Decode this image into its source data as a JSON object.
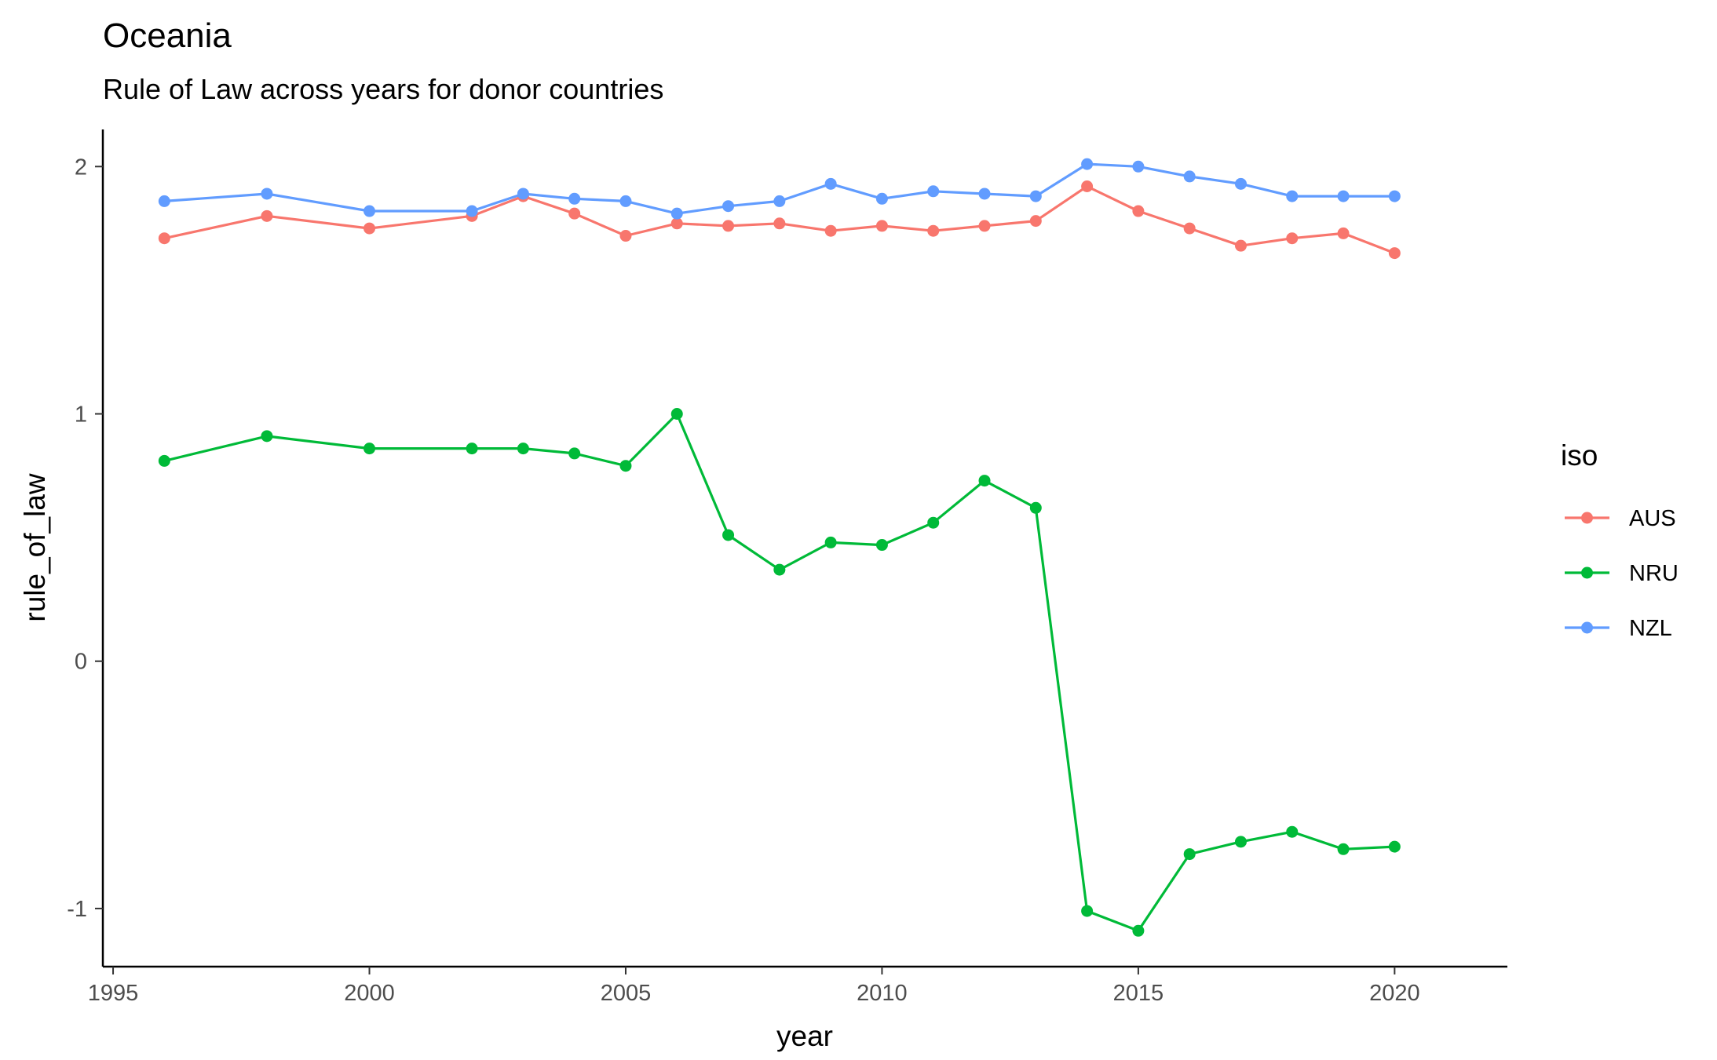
{
  "chart_data": {
    "type": "line",
    "title": "Oceania",
    "subtitle": "Rule of Law across years for donor countries",
    "xlabel": "year",
    "ylabel": "rule_of_law",
    "xlim": [
      1994.8,
      2022.2
    ],
    "ylim": [
      -1.235,
      2.15
    ],
    "xticks": [
      1995,
      2000,
      2005,
      2010,
      2015,
      2020
    ],
    "yticks": [
      -1,
      0,
      1,
      2
    ],
    "ytick_labels": [
      "-1",
      "0",
      "1",
      "2"
    ],
    "grid": false,
    "legend": {
      "title": "iso",
      "position": "right"
    },
    "x": [
      1996,
      1998,
      2000,
      2002,
      2003,
      2004,
      2005,
      2006,
      2007,
      2008,
      2009,
      2010,
      2011,
      2012,
      2013,
      2014,
      2015,
      2016,
      2017,
      2018,
      2019,
      2020
    ],
    "series": [
      {
        "name": "AUS",
        "color": "#F8766D",
        "values": [
          1.71,
          1.8,
          1.75,
          1.8,
          1.88,
          1.81,
          1.72,
          1.77,
          1.76,
          1.77,
          1.74,
          1.76,
          1.74,
          1.76,
          1.78,
          1.92,
          1.82,
          1.75,
          1.68,
          1.71,
          1.73,
          1.65
        ]
      },
      {
        "name": "NRU",
        "color": "#00BA38",
        "values": [
          0.81,
          0.91,
          0.86,
          0.86,
          0.86,
          0.84,
          0.79,
          1.0,
          0.51,
          0.37,
          0.48,
          0.47,
          0.56,
          0.73,
          0.62,
          -1.01,
          -1.09,
          -0.78,
          -0.73,
          -0.69,
          -0.76,
          -0.75
        ]
      },
      {
        "name": "NZL",
        "color": "#619CFF",
        "values": [
          1.86,
          1.89,
          1.82,
          1.82,
          1.89,
          1.87,
          1.86,
          1.81,
          1.84,
          1.86,
          1.93,
          1.87,
          1.9,
          1.89,
          1.88,
          2.01,
          2.0,
          1.96,
          1.93,
          1.88,
          1.88,
          1.88
        ]
      }
    ]
  }
}
